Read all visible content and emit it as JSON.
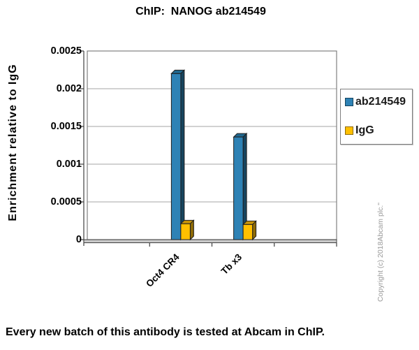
{
  "title": "ChIP:  NANOG ab214549",
  "caption": "Every new batch of this antibody is tested at Abcam in ChIP.",
  "watermark": "Copyright (c) 2018Abcam plc.\"",
  "chart_data": {
    "type": "bar",
    "style": "3d-bar",
    "title": "ChIP:  NANOG ab214549",
    "categories": [
      "Oct4 CR4",
      "Tb x3"
    ],
    "series": [
      {
        "name": "ab214549",
        "values": [
          0.0022,
          0.00136
        ],
        "color": "#2E82B5",
        "top_color": "#20688F",
        "side_color": "#16455F"
      },
      {
        "name": "IgG",
        "values": [
          0.00021,
          0.0002
        ],
        "color": "#FFC000",
        "top_color": "#C79408",
        "side_color": "#8F6B06"
      }
    ],
    "xlabel": "",
    "ylabel": "Enrichment relative to IgG",
    "ylim": [
      0,
      0.0025
    ],
    "ytick_step": 0.0005,
    "yticks": [
      "0",
      "0.0005",
      "0.001",
      "0.0015",
      "0.002",
      "0.0025"
    ],
    "grid": true,
    "gridline_color": "#A6A6A6",
    "frame_color": "#808080",
    "axis_color": "#404040",
    "floor_color": "#C9C9C9",
    "bar_outline_color": "#1F1F1F",
    "legend_position": "right"
  }
}
